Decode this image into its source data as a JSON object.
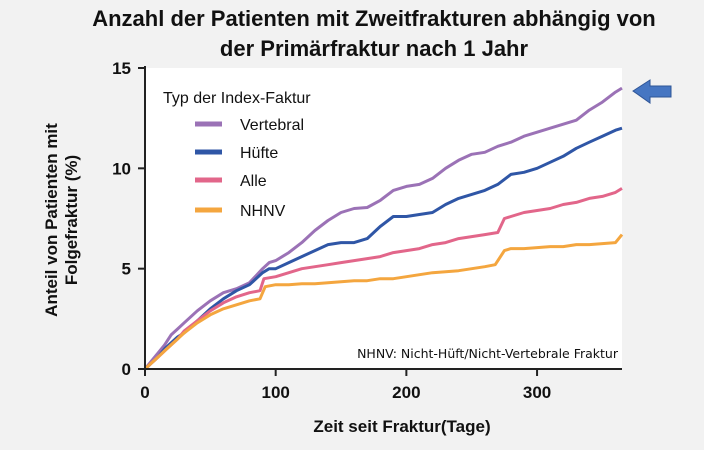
{
  "chart_data": {
    "type": "line",
    "title_lines": [
      "Anzahl der Patienten mit Zweitfrakturen abhängig von",
      "der Primärfraktur nach 1 Jahr"
    ],
    "xlabel": "Zeit seit Fraktur(Tage)",
    "ylabel_lines": [
      "Anteil von Patienten mit",
      "Folgefraktur (%)"
    ],
    "xlim": [
      0,
      365
    ],
    "ylim": [
      0,
      15
    ],
    "x_ticks": [
      0,
      100,
      200,
      300
    ],
    "y_ticks": [
      0,
      5,
      10,
      15
    ],
    "legend_title": "Typ der Index-Faktur",
    "legend_position": "top-left",
    "note": "NHNV: Nicht-Hüft/Nicht-Vertebrale Fraktur",
    "highlight": "arrow pointing at Vertebral series end",
    "series": [
      {
        "name": "Vertebral",
        "color": "#9b72b6",
        "points": [
          [
            0,
            0
          ],
          [
            5,
            0.4
          ],
          [
            10,
            0.8
          ],
          [
            15,
            1.2
          ],
          [
            20,
            1.7
          ],
          [
            25,
            2.0
          ],
          [
            30,
            2.3
          ],
          [
            40,
            2.9
          ],
          [
            50,
            3.4
          ],
          [
            60,
            3.8
          ],
          [
            70,
            4.0
          ],
          [
            80,
            4.3
          ],
          [
            90,
            5.0
          ],
          [
            95,
            5.3
          ],
          [
            100,
            5.4
          ],
          [
            110,
            5.8
          ],
          [
            120,
            6.3
          ],
          [
            130,
            6.9
          ],
          [
            140,
            7.4
          ],
          [
            150,
            7.8
          ],
          [
            160,
            8.0
          ],
          [
            170,
            8.05
          ],
          [
            180,
            8.4
          ],
          [
            190,
            8.9
          ],
          [
            200,
            9.1
          ],
          [
            210,
            9.2
          ],
          [
            220,
            9.5
          ],
          [
            230,
            10.0
          ],
          [
            240,
            10.4
          ],
          [
            250,
            10.7
          ],
          [
            260,
            10.8
          ],
          [
            270,
            11.1
          ],
          [
            280,
            11.3
          ],
          [
            290,
            11.6
          ],
          [
            300,
            11.8
          ],
          [
            310,
            12.0
          ],
          [
            320,
            12.2
          ],
          [
            330,
            12.4
          ],
          [
            340,
            12.9
          ],
          [
            350,
            13.3
          ],
          [
            360,
            13.8
          ],
          [
            365,
            14.0
          ]
        ]
      },
      {
        "name": "Hüfte",
        "color": "#2f56a6",
        "points": [
          [
            0,
            0
          ],
          [
            5,
            0.3
          ],
          [
            10,
            0.6
          ],
          [
            15,
            1.0
          ],
          [
            20,
            1.3
          ],
          [
            25,
            1.6
          ],
          [
            30,
            1.8
          ],
          [
            40,
            2.4
          ],
          [
            50,
            3.0
          ],
          [
            60,
            3.5
          ],
          [
            70,
            3.9
          ],
          [
            80,
            4.2
          ],
          [
            90,
            4.8
          ],
          [
            95,
            5.0
          ],
          [
            100,
            5.0
          ],
          [
            110,
            5.3
          ],
          [
            120,
            5.6
          ],
          [
            130,
            5.9
          ],
          [
            140,
            6.2
          ],
          [
            150,
            6.3
          ],
          [
            160,
            6.3
          ],
          [
            170,
            6.5
          ],
          [
            180,
            7.1
          ],
          [
            190,
            7.6
          ],
          [
            200,
            7.6
          ],
          [
            210,
            7.7
          ],
          [
            220,
            7.8
          ],
          [
            230,
            8.2
          ],
          [
            240,
            8.5
          ],
          [
            250,
            8.7
          ],
          [
            260,
            8.9
          ],
          [
            270,
            9.2
          ],
          [
            280,
            9.7
          ],
          [
            290,
            9.8
          ],
          [
            300,
            10.0
          ],
          [
            310,
            10.3
          ],
          [
            320,
            10.6
          ],
          [
            330,
            11.0
          ],
          [
            340,
            11.3
          ],
          [
            350,
            11.6
          ],
          [
            360,
            11.9
          ],
          [
            365,
            12.0
          ]
        ]
      },
      {
        "name": "Alle",
        "color": "#e2668a",
        "points": [
          [
            0,
            0
          ],
          [
            5,
            0.3
          ],
          [
            10,
            0.6
          ],
          [
            15,
            0.9
          ],
          [
            20,
            1.2
          ],
          [
            25,
            1.5
          ],
          [
            30,
            1.9
          ],
          [
            40,
            2.4
          ],
          [
            50,
            2.9
          ],
          [
            60,
            3.3
          ],
          [
            70,
            3.6
          ],
          [
            80,
            3.8
          ],
          [
            88,
            3.9
          ],
          [
            91,
            4.5
          ],
          [
            100,
            4.6
          ],
          [
            110,
            4.8
          ],
          [
            120,
            5.0
          ],
          [
            130,
            5.1
          ],
          [
            140,
            5.2
          ],
          [
            150,
            5.3
          ],
          [
            160,
            5.4
          ],
          [
            170,
            5.5
          ],
          [
            180,
            5.6
          ],
          [
            190,
            5.8
          ],
          [
            200,
            5.9
          ],
          [
            210,
            6.0
          ],
          [
            220,
            6.2
          ],
          [
            230,
            6.3
          ],
          [
            240,
            6.5
          ],
          [
            250,
            6.6
          ],
          [
            260,
            6.7
          ],
          [
            270,
            6.8
          ],
          [
            275,
            7.5
          ],
          [
            280,
            7.6
          ],
          [
            290,
            7.8
          ],
          [
            300,
            7.9
          ],
          [
            310,
            8.0
          ],
          [
            320,
            8.2
          ],
          [
            330,
            8.3
          ],
          [
            340,
            8.5
          ],
          [
            350,
            8.6
          ],
          [
            360,
            8.8
          ],
          [
            365,
            9.0
          ]
        ]
      },
      {
        "name": "NHNV",
        "color": "#f4a63f",
        "points": [
          [
            0,
            0
          ],
          [
            5,
            0.3
          ],
          [
            10,
            0.6
          ],
          [
            15,
            0.9
          ],
          [
            20,
            1.2
          ],
          [
            25,
            1.5
          ],
          [
            30,
            1.8
          ],
          [
            40,
            2.3
          ],
          [
            50,
            2.7
          ],
          [
            60,
            3.0
          ],
          [
            70,
            3.2
          ],
          [
            80,
            3.4
          ],
          [
            88,
            3.5
          ],
          [
            92,
            4.1
          ],
          [
            100,
            4.2
          ],
          [
            110,
            4.2
          ],
          [
            120,
            4.25
          ],
          [
            130,
            4.25
          ],
          [
            140,
            4.3
          ],
          [
            150,
            4.35
          ],
          [
            160,
            4.4
          ],
          [
            170,
            4.4
          ],
          [
            180,
            4.5
          ],
          [
            190,
            4.5
          ],
          [
            200,
            4.6
          ],
          [
            210,
            4.7
          ],
          [
            220,
            4.8
          ],
          [
            230,
            4.85
          ],
          [
            240,
            4.9
          ],
          [
            250,
            5.0
          ],
          [
            260,
            5.1
          ],
          [
            268,
            5.2
          ],
          [
            275,
            5.9
          ],
          [
            280,
            6.0
          ],
          [
            290,
            6.0
          ],
          [
            300,
            6.05
          ],
          [
            310,
            6.1
          ],
          [
            320,
            6.1
          ],
          [
            330,
            6.2
          ],
          [
            340,
            6.2
          ],
          [
            350,
            6.25
          ],
          [
            360,
            6.3
          ],
          [
            365,
            6.7
          ]
        ]
      }
    ]
  }
}
